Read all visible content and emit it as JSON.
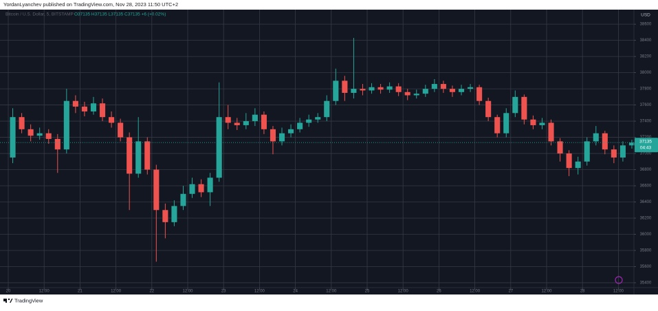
{
  "header": "YordanLyanchev published on TradingView.com, Nov 28, 2023 11:50 UTC+2",
  "footer": "TradingView",
  "chart_data": {
    "type": "candlestick",
    "title": "Bitcoin / U.S. Dollar, 5, BITSTAMP",
    "subtitle": "O37135 H37135 L37135 C37135 +6 (+0.02%)",
    "y_label": "USD",
    "up_color": "#26a69a",
    "down_color": "#ef5350",
    "grid": true,
    "last_price": 37135,
    "countdown": "04:43",
    "xlim": [
      -2.76,
      209.2
    ],
    "ylim": [
      35340,
      38780
    ],
    "xticks": [
      {
        "value": 0,
        "label": "20"
      },
      {
        "value": 12,
        "label": "12:00"
      },
      {
        "value": 24,
        "label": "21"
      },
      {
        "value": 36,
        "label": "12:00"
      },
      {
        "value": 48,
        "label": "22"
      },
      {
        "value": 60,
        "label": "12:00"
      },
      {
        "value": 72,
        "label": "23"
      },
      {
        "value": 84,
        "label": "12:00"
      },
      {
        "value": 96,
        "label": "24"
      },
      {
        "value": 108,
        "label": "12:00"
      },
      {
        "value": 120,
        "label": "25"
      },
      {
        "value": 132,
        "label": "12:00"
      },
      {
        "value": 144,
        "label": "26"
      },
      {
        "value": 156,
        "label": "12:00"
      },
      {
        "value": 168,
        "label": "27"
      },
      {
        "value": 180,
        "label": "12:00"
      },
      {
        "value": 192,
        "label": "28"
      },
      {
        "value": 204,
        "label": "12:00"
      }
    ],
    "yticks": [
      35400,
      35600,
      35800,
      36000,
      36200,
      36400,
      36600,
      36800,
      37000,
      37200,
      37400,
      37600,
      37800,
      38000,
      38200,
      38400,
      38600
    ],
    "x": [
      1.5,
      4.5,
      7.5,
      10.5,
      13.5,
      16.5,
      19.5,
      22.5,
      25.5,
      28.5,
      31.5,
      34.5,
      37.5,
      40.5,
      43.5,
      46.5,
      49.5,
      52.5,
      55.5,
      58.5,
      61.5,
      64.5,
      67.5,
      70.5,
      73.5,
      76.5,
      79.5,
      82.5,
      85.5,
      88.5,
      91.5,
      94.5,
      97.5,
      100.5,
      103.5,
      106.5,
      109.5,
      112.5,
      115.5,
      118.5,
      121.5,
      124.5,
      127.5,
      130.5,
      133.5,
      136.5,
      139.5,
      142.5,
      145.5,
      148.5,
      151.5,
      154.5,
      157.5,
      160.5,
      163.5,
      166.5,
      169.5,
      172.5,
      175.5,
      178.5,
      181.5,
      184.5,
      187.5,
      190.5,
      193.5,
      196.5,
      199.5,
      202.5,
      205.5,
      208.5
    ],
    "open": [
      36950,
      37450,
      37300,
      37220,
      37250,
      37180,
      37050,
      37650,
      37580,
      37520,
      37620,
      37450,
      37380,
      37200,
      36750,
      37150,
      36800,
      36300,
      36150,
      36350,
      36500,
      36620,
      36520,
      36700,
      37450,
      37380,
      37350,
      37400,
      37480,
      37300,
      37150,
      37250,
      37300,
      37380,
      37420,
      37450,
      37650,
      37900,
      37750,
      37800,
      37780,
      37820,
      37790,
      37830,
      37760,
      37720,
      37740,
      37800,
      37860,
      37800,
      37760,
      37800,
      37820,
      37650,
      37450,
      37250,
      37500,
      37700,
      37420,
      37350,
      37380,
      37150,
      37000,
      36820,
      36900,
      37150,
      37250,
      37050,
      36950,
      37100
    ],
    "high": [
      37560,
      37500,
      37360,
      37320,
      37300,
      37240,
      37800,
      37720,
      37640,
      37700,
      37680,
      37520,
      37430,
      37260,
      37450,
      37200,
      36860,
      36380,
      36420,
      36600,
      36700,
      36680,
      36760,
      37880,
      37600,
      37440,
      37500,
      37560,
      37520,
      37340,
      37320,
      37360,
      37440,
      37480,
      37500,
      37720,
      38050,
      37960,
      38430,
      37860,
      37870,
      37860,
      37880,
      37870,
      37800,
      37790,
      37850,
      37920,
      37900,
      37840,
      37850,
      37860,
      37850,
      37690,
      37480,
      37560,
      37780,
      37730,
      37470,
      37440,
      37420,
      37190,
      37040,
      36960,
      37200,
      37340,
      37280,
      37100,
      37150,
      37170
    ],
    "low": [
      36880,
      37250,
      37150,
      37170,
      37120,
      36760,
      37000,
      37500,
      37460,
      37480,
      37400,
      37320,
      37150,
      36300,
      36700,
      36740,
      35660,
      35950,
      36100,
      36300,
      36450,
      36460,
      36350,
      36650,
      37300,
      37290,
      37300,
      37340,
      37240,
      36990,
      37100,
      37200,
      37260,
      37330,
      37380,
      37400,
      37600,
      37650,
      37680,
      37720,
      37740,
      37740,
      37750,
      37710,
      37660,
      37680,
      37700,
      37760,
      37750,
      37700,
      37720,
      37760,
      37600,
      37400,
      37200,
      37200,
      37450,
      37360,
      37300,
      37300,
      37100,
      36900,
      36720,
      36740,
      36850,
      37100,
      36990,
      36880,
      36900,
      37060
    ],
    "close": [
      37450,
      37300,
      37220,
      37250,
      37180,
      37050,
      37650,
      37580,
      37520,
      37620,
      37450,
      37380,
      37200,
      36750,
      37150,
      36800,
      36300,
      36150,
      36350,
      36500,
      36620,
      36520,
      36700,
      37450,
      37380,
      37350,
      37400,
      37480,
      37300,
      37150,
      37250,
      37300,
      37380,
      37420,
      37450,
      37650,
      37900,
      37750,
      37800,
      37780,
      37820,
      37790,
      37830,
      37760,
      37720,
      37740,
      37800,
      37860,
      37800,
      37760,
      37800,
      37820,
      37650,
      37450,
      37250,
      37500,
      37700,
      37420,
      37350,
      37380,
      37150,
      37000,
      36820,
      36900,
      37150,
      37250,
      37050,
      36950,
      37100,
      37135
    ]
  }
}
